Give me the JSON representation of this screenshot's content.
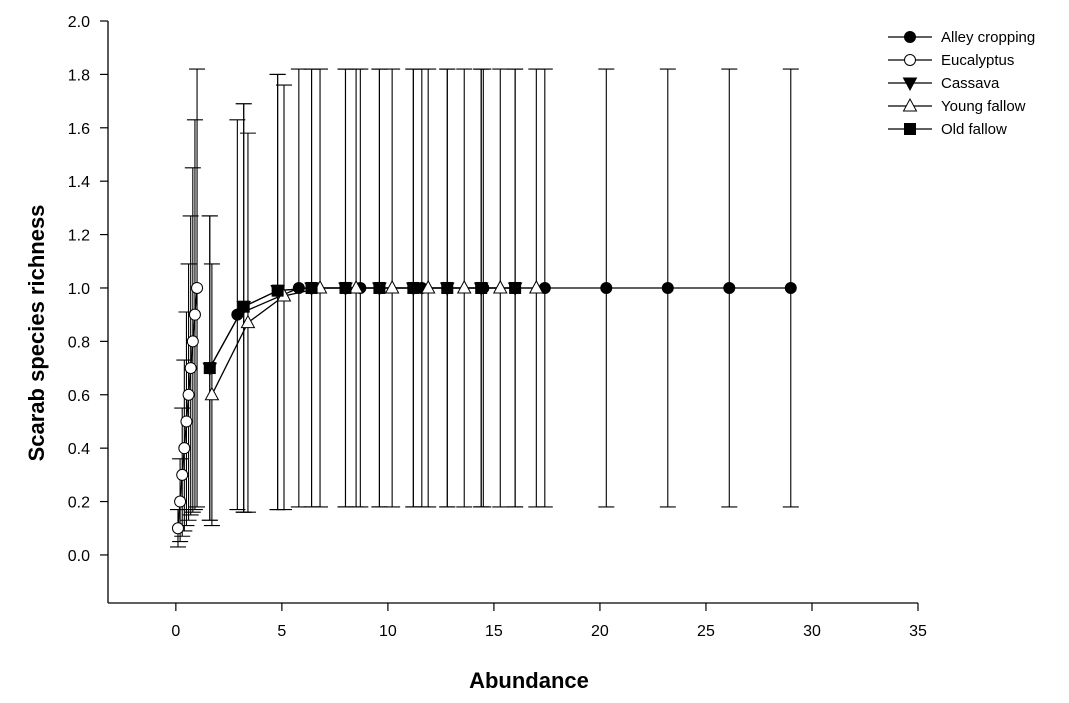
{
  "chart_data": {
    "type": "scatter",
    "xlabel": "Abundance",
    "ylabel": "Scarab species richness",
    "xlim": [
      -3.2,
      35
    ],
    "ylim": [
      -0.18,
      2.0
    ],
    "xticks": [
      0,
      5,
      10,
      15,
      20,
      25,
      30,
      35
    ],
    "yticks": [
      0.0,
      0.2,
      0.4,
      0.6,
      0.8,
      1.0,
      1.2,
      1.4,
      1.6,
      1.8,
      2.0
    ],
    "xtick_labels": [
      "0",
      "5",
      "10",
      "15",
      "20",
      "25",
      "30",
      "35"
    ],
    "ytick_labels": [
      "0.0",
      "0.2",
      "0.4",
      "0.6",
      "0.8",
      "1.0",
      "1.2",
      "1.4",
      "1.6",
      "1.8",
      "2.0"
    ],
    "grid": false,
    "legend_position": "top-right",
    "series": [
      {
        "name": "Alley cropping",
        "marker": "circle-filled",
        "x": [
          2.9,
          5.8,
          8.7,
          11.6,
          14.5,
          17.4,
          20.3,
          23.2,
          26.1,
          29.0
        ],
        "y": [
          0.9,
          1.0,
          1.0,
          1.0,
          1.0,
          1.0,
          1.0,
          1.0,
          1.0,
          1.0
        ],
        "err_low": [
          0.17,
          0.18,
          0.18,
          0.18,
          0.18,
          0.18,
          0.18,
          0.18,
          0.18,
          0.18
        ],
        "err_high": [
          1.63,
          1.82,
          1.82,
          1.82,
          1.82,
          1.82,
          1.82,
          1.82,
          1.82,
          1.82
        ]
      },
      {
        "name": "Eucalyptus",
        "marker": "circle-open",
        "x": [
          0.1,
          0.2,
          0.3,
          0.4,
          0.5,
          0.6,
          0.7,
          0.8,
          0.9,
          1.0
        ],
        "y": [
          0.1,
          0.2,
          0.3,
          0.4,
          0.5,
          0.6,
          0.7,
          0.8,
          0.9,
          1.0
        ],
        "err_low": [
          0.03,
          0.05,
          0.07,
          0.09,
          0.11,
          0.13,
          0.15,
          0.16,
          0.17,
          0.18
        ],
        "err_high": [
          0.17,
          0.36,
          0.55,
          0.73,
          0.91,
          1.09,
          1.27,
          1.45,
          1.63,
          1.82
        ]
      },
      {
        "name": "Cassava",
        "marker": "triangle-down-filled",
        "x": [
          1.6,
          3.2,
          4.8,
          6.4,
          8.0,
          9.6,
          11.2,
          12.8,
          14.4,
          16.0
        ],
        "y": [
          0.7,
          0.93,
          0.99,
          1.0,
          1.0,
          1.0,
          1.0,
          1.0,
          1.0,
          1.0
        ],
        "err_low": [
          0.13,
          0.16,
          0.17,
          0.18,
          0.18,
          0.18,
          0.18,
          0.18,
          0.18,
          0.18
        ],
        "err_high": [
          1.27,
          1.69,
          1.8,
          1.82,
          1.82,
          1.82,
          1.82,
          1.82,
          1.82,
          1.82
        ]
      },
      {
        "name": "Young fallow",
        "marker": "triangle-up-open",
        "x": [
          1.7,
          3.4,
          5.1,
          6.8,
          8.5,
          10.2,
          11.9,
          13.6,
          15.3,
          17.0
        ],
        "y": [
          0.6,
          0.87,
          0.97,
          1.0,
          1.0,
          1.0,
          1.0,
          1.0,
          1.0,
          1.0
        ],
        "err_low": [
          0.11,
          0.16,
          0.17,
          0.18,
          0.18,
          0.18,
          0.18,
          0.18,
          0.18,
          0.18
        ],
        "err_high": [
          1.09,
          1.58,
          1.76,
          1.82,
          1.82,
          1.82,
          1.82,
          1.82,
          1.82,
          1.82
        ]
      },
      {
        "name": "Old fallow",
        "marker": "square-filled",
        "x": [
          1.6,
          3.2,
          4.8,
          6.4,
          8.0,
          9.6,
          11.2,
          12.8,
          14.4,
          16.0
        ],
        "y": [
          0.7,
          0.93,
          0.99,
          1.0,
          1.0,
          1.0,
          1.0,
          1.0,
          1.0,
          1.0
        ],
        "err_low": [
          0.13,
          0.16,
          0.17,
          0.18,
          0.18,
          0.18,
          0.18,
          0.18,
          0.18,
          0.18
        ],
        "err_high": [
          1.27,
          1.69,
          1.8,
          1.82,
          1.82,
          1.82,
          1.82,
          1.82,
          1.82,
          1.82
        ]
      }
    ]
  }
}
